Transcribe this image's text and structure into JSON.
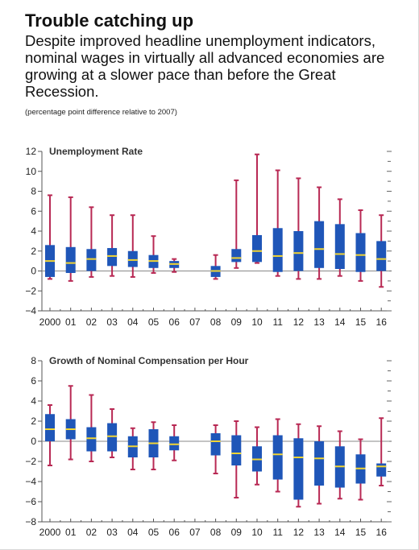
{
  "header": {
    "title": "Trouble catching up",
    "subtitle": "Despite improved headline unemployment indicators, nominal wages in virtually all advanced economies are growing at a slower pace than before the Great Recession.",
    "note": "(percentage point difference relative to 2007)"
  },
  "chart_data": [
    {
      "type": "box",
      "title": "Unemployment Rate",
      "categories": [
        "2000",
        "01",
        "02",
        "03",
        "04",
        "05",
        "06",
        "07",
        "08",
        "09",
        "10",
        "11",
        "12",
        "13",
        "14",
        "15",
        "16"
      ],
      "ylim": [
        -4,
        12
      ],
      "yticks": [
        12,
        10,
        8,
        6,
        4,
        2,
        0,
        -2,
        -4
      ],
      "series": [
        {
          "whisker_low": [
            -0.8,
            -1.0,
            -0.6,
            -0.5,
            -0.6,
            -0.2,
            -0.1,
            null,
            -0.8,
            0.3,
            0.8,
            -0.5,
            -0.8,
            -0.8,
            -0.5,
            -1.0,
            -1.6
          ],
          "q1": [
            -0.6,
            -0.2,
            0.0,
            0.5,
            0.4,
            0.3,
            0.3,
            null,
            -0.6,
            0.9,
            0.9,
            -0.1,
            0.0,
            0.3,
            0.2,
            -0.1,
            0.0
          ],
          "median": [
            1.0,
            0.8,
            1.2,
            1.5,
            1.1,
            1.0,
            0.7,
            null,
            0.0,
            1.3,
            2.0,
            1.5,
            1.8,
            2.2,
            1.7,
            1.6,
            1.2
          ],
          "q3": [
            2.6,
            2.4,
            2.2,
            2.3,
            2.0,
            1.6,
            1.0,
            null,
            0.5,
            2.2,
            3.6,
            4.3,
            4.0,
            5.0,
            4.7,
            3.8,
            3.0
          ],
          "whisker_high": [
            7.6,
            7.4,
            6.4,
            5.6,
            5.6,
            3.5,
            1.2,
            null,
            1.6,
            9.1,
            11.7,
            10.1,
            9.3,
            8.4,
            7.2,
            6.1,
            5.6
          ]
        }
      ],
      "colors": {
        "box": "#1f56b8",
        "median": "#f2d533",
        "whisker": "#b82954",
        "zero_line": "#888888"
      }
    },
    {
      "type": "box",
      "title": "Growth of Nominal Compensation per Hour",
      "categories": [
        "2000",
        "01",
        "02",
        "03",
        "04",
        "05",
        "06",
        "07",
        "08",
        "09",
        "10",
        "11",
        "12",
        "13",
        "14",
        "15",
        "16"
      ],
      "ylim": [
        -8,
        8
      ],
      "yticks": [
        8,
        6,
        4,
        2,
        0,
        -2,
        -4,
        -6,
        -8
      ],
      "series": [
        {
          "whisker_low": [
            -2.4,
            -1.8,
            -2.0,
            -1.6,
            -2.8,
            -2.8,
            -1.9,
            null,
            -3.2,
            -5.6,
            -4.3,
            -5.0,
            -6.5,
            -6.2,
            -5.7,
            -5.8,
            -4.4
          ],
          "q1": [
            0.0,
            0.2,
            -1.0,
            -1.0,
            -1.6,
            -1.6,
            -0.9,
            null,
            -1.4,
            -2.4,
            -3.0,
            -3.8,
            -5.8,
            -4.4,
            -4.6,
            -4.2,
            -3.5
          ],
          "median": [
            1.2,
            1.2,
            0.3,
            0.5,
            -0.5,
            -0.2,
            -0.3,
            null,
            0.0,
            -1.2,
            -1.8,
            -1.3,
            -1.6,
            -1.7,
            -2.5,
            -2.7,
            -2.5
          ],
          "q3": [
            2.7,
            2.2,
            1.4,
            1.8,
            0.5,
            1.2,
            0.5,
            null,
            0.8,
            0.6,
            -0.5,
            0.6,
            0.3,
            0.0,
            -0.5,
            -1.3,
            -2.2
          ],
          "whisker_high": [
            3.6,
            5.5,
            4.6,
            3.2,
            1.3,
            1.9,
            1.6,
            null,
            1.6,
            2.0,
            1.4,
            2.2,
            1.7,
            1.5,
            1.0,
            0.2,
            2.3
          ]
        }
      ],
      "colors": {
        "box": "#1f56b8",
        "median": "#f2d533",
        "whisker": "#b82954",
        "zero_line": "#888888"
      }
    }
  ]
}
